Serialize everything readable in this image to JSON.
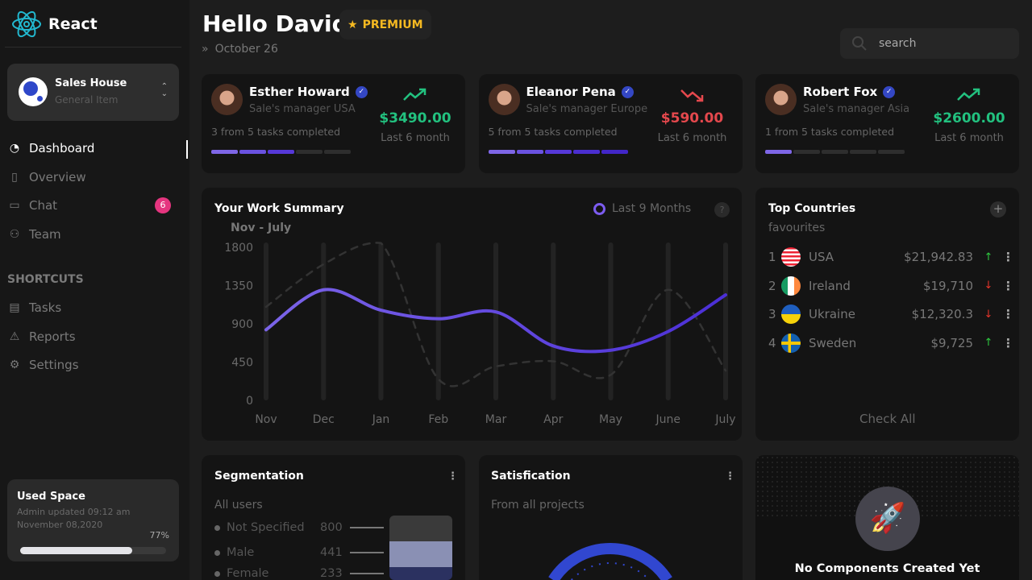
{
  "app": {
    "name": "React"
  },
  "org": {
    "name": "Sales House",
    "sub": "General Item"
  },
  "nav": [
    {
      "label": "Dashboard",
      "icon": "pie-icon",
      "active": true
    },
    {
      "label": "Overview",
      "icon": "document-icon"
    },
    {
      "label": "Chat",
      "icon": "chat-icon",
      "badge": "6"
    },
    {
      "label": "Team",
      "icon": "team-icon"
    }
  ],
  "shortcuts": {
    "title": "SHORTCUTS",
    "items": [
      {
        "label": "Tasks",
        "icon": "tasks-icon"
      },
      {
        "label": "Reports",
        "icon": "warning-icon"
      },
      {
        "label": "Settings",
        "icon": "gear-icon"
      }
    ]
  },
  "used_space": {
    "title": "Used Space",
    "line1": "Admin updated 09:12 am",
    "line2": "November 08,2020",
    "percent_label": "77%",
    "percent": 77
  },
  "header": {
    "greeting": "Hello David",
    "badge": "PREMIUM",
    "date": "October 26",
    "search_placeholder": "search"
  },
  "managers": [
    {
      "name": "Esther Howard",
      "role": "Sale's manager USA",
      "tasks": "3 from 5 tasks completed",
      "done": 3,
      "amount": "$3490.00",
      "period": "Last 6 month",
      "trend": "up"
    },
    {
      "name": "Eleanor Pena",
      "role": "Sale's manager Europe",
      "tasks": "5 from 5 tasks completed",
      "done": 5,
      "amount": "$590.00",
      "period": "Last 6 month",
      "trend": "down"
    },
    {
      "name": "Robert Fox",
      "role": "Sale's manager Asia",
      "tasks": "1 from 5 tasks completed",
      "done": 1,
      "amount": "$2600.00",
      "period": "Last 6 month",
      "trend": "up"
    }
  ],
  "colors": {
    "up": "#22c17f",
    "down": "#e5484d",
    "accent": "#6b4ff0",
    "premium": "#f5b921"
  },
  "work_summary": {
    "title": "Your Work Summary",
    "range": "Nov - July",
    "legend": "Last 9 Months",
    "help": "?"
  },
  "chart_data": {
    "type": "line",
    "categories": [
      "Nov",
      "Dec",
      "Jan",
      "Feb",
      "Mar",
      "Apr",
      "May",
      "June",
      "July"
    ],
    "yticks": [
      0,
      450,
      900,
      1350,
      1800
    ],
    "ylim": [
      0,
      1800
    ],
    "grid": "vertical bars",
    "series": [
      {
        "values": [
          830,
          1300,
          1060,
          960,
          1040,
          640,
          590,
          810,
          1240
        ],
        "style": "solid",
        "color": "#6b4ff0"
      },
      {
        "values": [
          1100,
          1600,
          1850,
          250,
          400,
          460,
          300,
          1300,
          350
        ],
        "style": "dashed",
        "color": "#333333"
      }
    ]
  },
  "countries": {
    "title": "Top Countries",
    "sub": "favourites",
    "check_all": "Check All",
    "items": [
      {
        "rank": "1",
        "name": "USA",
        "value": "$21,942.83",
        "trend": "up"
      },
      {
        "rank": "2",
        "name": "Ireland",
        "value": "$19,710",
        "trend": "down"
      },
      {
        "rank": "3",
        "name": "Ukraine",
        "value": "$12,320.3",
        "trend": "down"
      },
      {
        "rank": "4",
        "name": "Sweden",
        "value": "$9,725",
        "trend": "up"
      }
    ]
  },
  "segmentation": {
    "title": "Segmentation",
    "sub": "All users",
    "items": [
      {
        "label": "Not Specified",
        "value": "800"
      },
      {
        "label": "Male",
        "value": "441"
      },
      {
        "label": "Female",
        "value": "233"
      }
    ]
  },
  "satisfaction": {
    "title": "Satisfication",
    "sub": "From all projects"
  },
  "empty": {
    "title": "No Components Created Yet"
  }
}
